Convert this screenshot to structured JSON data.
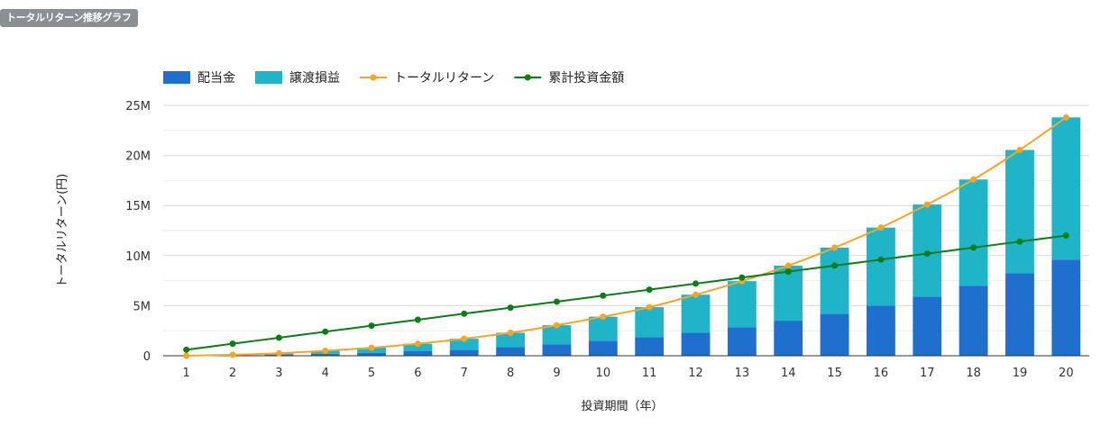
{
  "panel": {
    "badge_label": "トータルリターン推移グラフ"
  },
  "colors": {
    "dividend": "#1f6fce",
    "capital_gain": "#1fb5c9",
    "total_return": "#f5a623",
    "cumulative_investment": "#0a7d14",
    "grid": "#d9d9d9",
    "axis": "#333333"
  },
  "chart_data": {
    "type": "bar",
    "stacked": true,
    "title": "",
    "xlabel": "投資期間（年）",
    "ylabel": "トータルリターン(円)",
    "ylim": [
      0,
      25000000
    ],
    "yticks": [
      0,
      5000000,
      10000000,
      15000000,
      20000000,
      25000000
    ],
    "ytick_labels": [
      "0",
      "5M",
      "10M",
      "15M",
      "20M",
      "25M"
    ],
    "categories": [
      "1",
      "2",
      "3",
      "4",
      "5",
      "6",
      "7",
      "8",
      "9",
      "10",
      "11",
      "12",
      "13",
      "14",
      "15",
      "16",
      "17",
      "18",
      "19",
      "20"
    ],
    "legend_position": "top-left",
    "series": [
      {
        "name": "配当金",
        "kind": "bar",
        "color_key": "dividend",
        "values": [
          0,
          50000,
          100000,
          200000,
          300000,
          450000,
          600000,
          850000,
          1150000,
          1500000,
          1850000,
          2300000,
          2850000,
          3500000,
          4200000,
          5000000,
          5900000,
          7000000,
          8250000,
          9600000
        ]
      },
      {
        "name": "譲渡損益",
        "kind": "bar",
        "color_key": "capital_gain",
        "values": [
          0,
          50000,
          150000,
          300000,
          500000,
          750000,
          1100000,
          1450000,
          1900000,
          2400000,
          3000000,
          3800000,
          4600000,
          5500000,
          6600000,
          7800000,
          9200000,
          10600000,
          12300000,
          14200000
        ]
      },
      {
        "name": "トータルリターン",
        "kind": "line",
        "color_key": "total_return",
        "values": [
          0,
          100000,
          250000,
          500000,
          800000,
          1200000,
          1700000,
          2300000,
          3050000,
          3900000,
          4850000,
          6100000,
          7450000,
          9000000,
          10800000,
          12800000,
          15100000,
          17600000,
          20550000,
          23800000
        ]
      },
      {
        "name": "累計投資金額",
        "kind": "line",
        "color_key": "cumulative_investment",
        "values": [
          600000,
          1200000,
          1800000,
          2400000,
          3000000,
          3600000,
          4200000,
          4800000,
          5400000,
          6000000,
          6600000,
          7200000,
          7800000,
          8400000,
          9000000,
          9600000,
          10200000,
          10800000,
          11400000,
          12000000
        ]
      }
    ]
  }
}
